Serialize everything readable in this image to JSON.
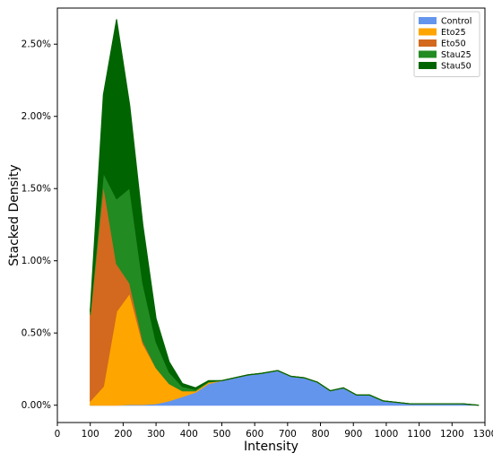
{
  "chart_data": {
    "type": "area",
    "stacked": true,
    "xlabel": "Intensity",
    "ylabel": "Stacked Density",
    "xlim": [
      0,
      1300
    ],
    "ylim": [
      -0.0012,
      0.0275
    ],
    "x_ticks": [
      0,
      100,
      200,
      300,
      400,
      500,
      600,
      700,
      800,
      900,
      1000,
      1100,
      1200,
      1300
    ],
    "x_tick_labels": [
      "0",
      "100",
      "200",
      "300",
      "400",
      "500",
      "600",
      "700",
      "800",
      "900",
      "1000",
      "1100",
      "1200",
      "1300"
    ],
    "y_ticks": [
      0,
      0.005,
      0.01,
      0.015,
      0.02,
      0.025
    ],
    "y_tick_labels": [
      "0.00%",
      "0.50%",
      "1.00%",
      "1.50%",
      "2.00%",
      "2.50%"
    ],
    "grid": false,
    "legend_position": "top-right",
    "x": [
      100,
      140,
      180,
      220,
      260,
      300,
      340,
      380,
      420,
      460,
      500,
      540,
      580,
      620,
      670,
      710,
      750,
      790,
      830,
      870,
      910,
      950,
      990,
      1030,
      1070,
      1110,
      1150,
      1190,
      1230,
      1280
    ],
    "series": [
      {
        "name": "Control",
        "color": "#6495ED",
        "values": [
          0,
          0,
          0,
          5e-05,
          5e-05,
          0.0001,
          0.0003,
          0.0006,
          0.0009,
          0.0015,
          0.0017,
          0.0019,
          0.0021,
          0.0022,
          0.0024,
          0.002,
          0.0019,
          0.0016,
          0.001,
          0.0012,
          0.0007,
          0.0007,
          0.0003,
          0.0002,
          0.0001,
          0.0001,
          0.0001,
          0.0001,
          0.0001,
          0
        ]
      },
      {
        "name": "Eto25",
        "color": "#FFA500",
        "values": [
          0.0003,
          0.0013,
          0.0065,
          0.0077,
          0.0042,
          0.0025,
          0.0012,
          0.0004,
          0.0001,
          0.0001,
          0,
          0,
          0,
          0,
          0,
          0,
          0,
          0,
          0,
          0,
          0,
          0,
          0,
          0,
          0,
          0,
          0,
          0,
          0,
          0
        ]
      },
      {
        "name": "Eto50",
        "color": "#D2691E",
        "values": [
          0.006,
          0.014,
          0.0033,
          0.0007,
          0.0002,
          0,
          0,
          0,
          0,
          0,
          0,
          0,
          0,
          0,
          0,
          0,
          0,
          0,
          0,
          0,
          0,
          0,
          0,
          0,
          0,
          0,
          0,
          0,
          0,
          0
        ]
      },
      {
        "name": "Stau25",
        "color": "#228B22",
        "values": [
          0.0002,
          0.0008,
          0.0045,
          0.0066,
          0.004,
          0.0018,
          0.0008,
          0.0003,
          0.0001,
          5e-05,
          0,
          0,
          0,
          0,
          0,
          0,
          0,
          0,
          0,
          0,
          0,
          0,
          0,
          0,
          0,
          0,
          0,
          0,
          0,
          0
        ]
      },
      {
        "name": "Stau50",
        "color": "#006400",
        "values": [
          0,
          0.0054,
          0.0124,
          0.0057,
          0.004,
          0.0016,
          0.0007,
          0.0002,
          0.0001,
          5e-05,
          0,
          0,
          0,
          0,
          0,
          0,
          0,
          0,
          0,
          0,
          0,
          0,
          0,
          0,
          0,
          0,
          0,
          0,
          0,
          0
        ]
      }
    ]
  }
}
